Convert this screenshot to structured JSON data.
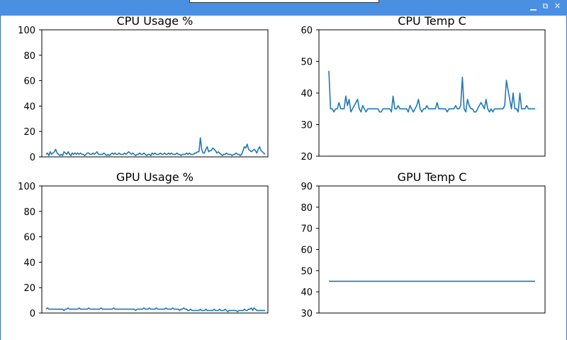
{
  "window": {
    "buttons": [
      {
        "name": "minimize",
        "glyph": "▁"
      },
      {
        "name": "maximize",
        "glyph": "⧉"
      },
      {
        "name": "close",
        "glyph": "✕"
      }
    ]
  },
  "colors": {
    "line": "#1f77b4",
    "titlebar": "#4a90e2",
    "axes": "#000000"
  },
  "chart_data": [
    {
      "id": "cpu-usage",
      "type": "line",
      "title": "CPU Usage %",
      "xlabel": "",
      "ylabel": "",
      "ylim": [
        0,
        100
      ],
      "yticks": [
        0,
        20,
        40,
        60,
        80,
        100
      ],
      "xticks": [],
      "grid": false,
      "series": [
        {
          "values": [
            2,
            3,
            1,
            4,
            2,
            3,
            4,
            6,
            3,
            2,
            1,
            2,
            1,
            4,
            3,
            2,
            4,
            2,
            1,
            3,
            2,
            3,
            2,
            3,
            2,
            3,
            2,
            2,
            1,
            2,
            3,
            3,
            2,
            2,
            3,
            2,
            3,
            4,
            2,
            2,
            2,
            2,
            3,
            2,
            1,
            2,
            1,
            2,
            3,
            2,
            3,
            2,
            2,
            3,
            2,
            2,
            2,
            3,
            2,
            3,
            4,
            3,
            2,
            3,
            2,
            1,
            2,
            2,
            3,
            2,
            2,
            3,
            2,
            1,
            2,
            2,
            1,
            3,
            2,
            3,
            2,
            2,
            2,
            3,
            2,
            2,
            3,
            2,
            2,
            3,
            2,
            3,
            2,
            2,
            2,
            3,
            2,
            2,
            1,
            2,
            2,
            2,
            3,
            2,
            3,
            2,
            2,
            2,
            3,
            3,
            4,
            4,
            15,
            6,
            3,
            3,
            6,
            8,
            4,
            5,
            5,
            7,
            6,
            5,
            3,
            4,
            3,
            2,
            1,
            2,
            2,
            3,
            2,
            2,
            2,
            1,
            2,
            2,
            3,
            2,
            2,
            1,
            2,
            5,
            8,
            7,
            10,
            6,
            5,
            4,
            5,
            6,
            5,
            3,
            6,
            8,
            5,
            4,
            3,
            2
          ]
        }
      ]
    },
    {
      "id": "cpu-temp",
      "type": "line",
      "title": "CPU Temp C",
      "xlabel": "",
      "ylabel": "",
      "ylim": [
        20,
        60
      ],
      "yticks": [
        20,
        30,
        40,
        50,
        60
      ],
      "xticks": [],
      "grid": false,
      "series": [
        {
          "values": [
            47,
            35,
            35,
            34,
            35,
            35,
            37,
            35,
            35,
            35,
            39,
            36,
            38,
            34,
            35,
            36,
            37,
            38,
            35,
            34,
            36,
            35,
            34,
            35,
            35,
            35,
            35,
            35,
            35,
            35,
            34,
            34,
            35,
            35,
            35,
            35,
            35,
            34,
            39,
            35,
            35,
            36,
            35,
            35,
            35,
            35,
            35,
            34,
            36,
            35,
            34,
            35,
            36,
            38,
            35,
            34,
            35,
            35,
            36,
            35,
            35,
            35,
            35,
            35,
            37,
            35,
            35,
            35,
            35,
            35,
            34,
            35,
            35,
            35,
            35,
            36,
            35,
            35,
            36,
            45,
            35,
            34,
            38,
            36,
            35,
            35,
            34,
            34,
            35,
            36,
            37,
            36,
            35,
            38,
            35,
            34,
            35,
            34,
            35,
            35,
            35,
            35,
            35,
            35,
            36,
            44,
            41,
            38,
            35,
            40,
            35,
            35,
            34,
            40,
            35,
            35,
            35,
            36,
            35,
            35,
            35,
            35,
            35
          ]
        }
      ]
    },
    {
      "id": "gpu-usage",
      "type": "line",
      "title": "GPU Usage %",
      "xlabel": "",
      "ylabel": "",
      "ylim": [
        0,
        100
      ],
      "yticks": [
        0,
        20,
        40,
        60,
        80,
        100
      ],
      "xticks": [],
      "grid": false,
      "series": [
        {
          "values": [
            3,
            4,
            3,
            3,
            3,
            3,
            3,
            3,
            3,
            3,
            3,
            3,
            3,
            2,
            3,
            3,
            4,
            3,
            3,
            3,
            3,
            3,
            3,
            3,
            4,
            3,
            3,
            3,
            3,
            3,
            3,
            4,
            3,
            3,
            3,
            3,
            3,
            3,
            3,
            3,
            4,
            3,
            3,
            3,
            3,
            3,
            3,
            3,
            3,
            4,
            3,
            3,
            3,
            3,
            3,
            3,
            3,
            3,
            3,
            3,
            3,
            3,
            3,
            3,
            3,
            2,
            3,
            3,
            3,
            3,
            3,
            4,
            3,
            3,
            3,
            4,
            3,
            3,
            3,
            3,
            4,
            3,
            3,
            3,
            3,
            3,
            3,
            4,
            3,
            3,
            3,
            3,
            4,
            3,
            3,
            3,
            3,
            2,
            3,
            3,
            4,
            3,
            3,
            2,
            2,
            3,
            2,
            2,
            2,
            2,
            2,
            2,
            3,
            2,
            2,
            2,
            3,
            2,
            2,
            2,
            2,
            2,
            3,
            2,
            2,
            2,
            3,
            2,
            2,
            2,
            3,
            2,
            1,
            2,
            2,
            2,
            2,
            2,
            2,
            1,
            2,
            2,
            2,
            2,
            3,
            2,
            2,
            3,
            3,
            4,
            2,
            4,
            3,
            2,
            2,
            2,
            2,
            2,
            2,
            2
          ]
        }
      ]
    },
    {
      "id": "gpu-temp",
      "type": "line",
      "title": "GPU Temp C",
      "xlabel": "",
      "ylabel": "",
      "ylim": [
        30,
        90
      ],
      "yticks": [
        30,
        40,
        50,
        60,
        70,
        80,
        90
      ],
      "xticks": [],
      "grid": false,
      "series": [
        {
          "values": [
            45,
            45,
            45,
            45,
            45,
            45,
            45,
            45,
            45,
            45,
            45,
            45,
            45,
            45,
            45,
            45,
            45,
            45,
            45,
            45,
            45,
            45,
            45,
            45,
            45,
            45,
            45,
            45,
            45,
            45,
            45,
            45,
            45,
            45,
            45,
            45,
            45,
            45,
            45,
            45,
            45,
            45,
            45,
            45,
            45,
            45,
            45,
            45,
            45,
            45
          ]
        }
      ]
    }
  ]
}
